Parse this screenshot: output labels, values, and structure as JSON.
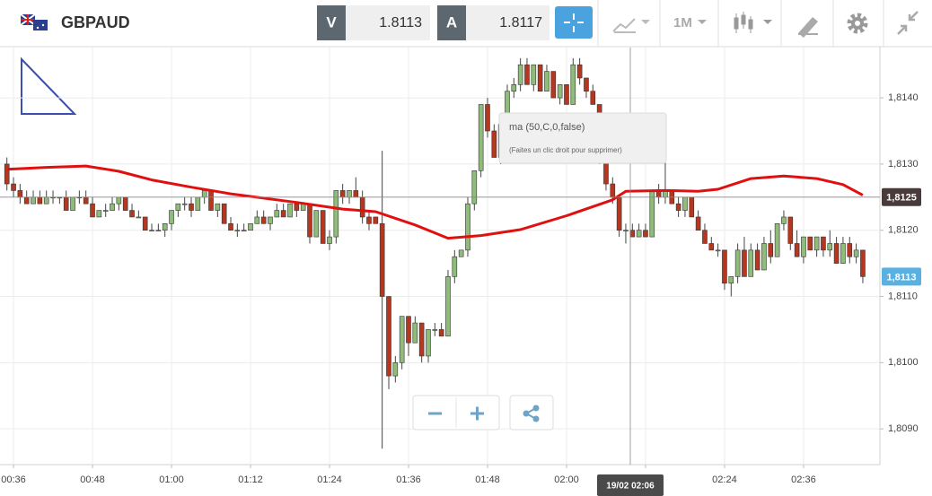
{
  "toolbar": {
    "symbol": "GBPAUD",
    "bid_label": "V",
    "bid": 1.8113,
    "ask_label": "A",
    "ask": 1.8117,
    "timeframe": "1M"
  },
  "tooltip_hint": "(Faites un clic droit pour supprimer)",
  "crosshair": {
    "price": {
      "value": 1.8125,
      "label": "1,8125"
    },
    "time": "19/02 02:06"
  },
  "last_price": {
    "value": 1.8113,
    "label": "1,8113"
  },
  "chart_data": {
    "type": "candlestick",
    "up_color": "#8fbc7a",
    "down_color": "#b5371f",
    "grid": true,
    "xlim": [
      -1.05,
      132.6
    ],
    "xticks": [
      {
        "value": 1,
        "label": "00:36"
      },
      {
        "value": 13,
        "label": "00:48"
      },
      {
        "value": 25,
        "label": "01:00"
      },
      {
        "value": 37,
        "label": "01:12"
      },
      {
        "value": 49,
        "label": "01:24"
      },
      {
        "value": 61,
        "label": "01:36"
      },
      {
        "value": 73,
        "label": "01:48"
      },
      {
        "value": 85,
        "label": "02:00"
      },
      {
        "value": 97,
        "label": "02:12"
      },
      {
        "value": 109,
        "label": "02:24"
      },
      {
        "value": 121,
        "label": "02:36"
      }
    ],
    "ylim": [
      1.80846,
      1.81476
    ],
    "yticks": [
      {
        "value": 1.809,
        "label": "1,8090"
      },
      {
        "value": 1.81,
        "label": "1,8100"
      },
      {
        "value": 1.811,
        "label": "1,8110"
      },
      {
        "value": 1.812,
        "label": "1,8120"
      },
      {
        "value": 1.813,
        "label": "1,8130"
      },
      {
        "value": 1.814,
        "label": "1,8140"
      }
    ],
    "candles": [
      [
        1.813,
        1.8131,
        1.8126,
        1.8127
      ],
      [
        1.8127,
        1.8128,
        1.8125,
        1.8126
      ],
      [
        1.8126,
        1.8127,
        1.8124,
        1.8125
      ],
      [
        1.8125,
        1.8126,
        1.8124,
        1.8124
      ],
      [
        1.8124,
        1.8126,
        1.8124,
        1.8125
      ],
      [
        1.8125,
        1.8126,
        1.8124,
        1.8124
      ],
      [
        1.8124,
        1.8126,
        1.8124,
        1.8125
      ],
      [
        1.8125,
        1.8126,
        1.8124,
        1.8125
      ],
      [
        1.8125,
        1.8125,
        1.8124,
        1.8125
      ],
      [
        1.8125,
        1.8126,
        1.8123,
        1.8123
      ],
      [
        1.8123,
        1.8125,
        1.8123,
        1.8125
      ],
      [
        1.8125,
        1.8126,
        1.8124,
        1.8125
      ],
      [
        1.8125,
        1.8126,
        1.8124,
        1.8124
      ],
      [
        1.8124,
        1.8125,
        1.8122,
        1.8122
      ],
      [
        1.8122,
        1.8123,
        1.8122,
        1.8123
      ],
      [
        1.8123,
        1.8124,
        1.8122,
        1.8123
      ],
      [
        1.8123,
        1.8125,
        1.8123,
        1.8124
      ],
      [
        1.8124,
        1.8125,
        1.8123,
        1.8125
      ],
      [
        1.8125,
        1.8125,
        1.8123,
        1.8123
      ],
      [
        1.8123,
        1.8124,
        1.8122,
        1.8122
      ],
      [
        1.8122,
        1.8123,
        1.8122,
        1.8122
      ],
      [
        1.8122,
        1.8122,
        1.812,
        1.812
      ],
      [
        1.812,
        1.8121,
        1.812,
        1.812
      ],
      [
        1.812,
        1.8121,
        1.812,
        1.812
      ],
      [
        1.812,
        1.8121,
        1.8119,
        1.8121
      ],
      [
        1.8121,
        1.8123,
        1.812,
        1.8123
      ],
      [
        1.8123,
        1.8124,
        1.8122,
        1.8124
      ],
      [
        1.8124,
        1.8125,
        1.8123,
        1.8124
      ],
      [
        1.8124,
        1.8125,
        1.8122,
        1.8123
      ],
      [
        1.8123,
        1.8125,
        1.8123,
        1.8125
      ],
      [
        1.8125,
        1.8126,
        1.8124,
        1.8126
      ],
      [
        1.8126,
        1.8126,
        1.8123,
        1.8123
      ],
      [
        1.8123,
        1.8124,
        1.8122,
        1.8124
      ],
      [
        1.8124,
        1.8124,
        1.8121,
        1.8121
      ],
      [
        1.8121,
        1.8122,
        1.812,
        1.812
      ],
      [
        1.812,
        1.8121,
        1.8119,
        1.812
      ],
      [
        1.812,
        1.8121,
        1.812,
        1.812
      ],
      [
        1.812,
        1.8121,
        1.812,
        1.8121
      ],
      [
        1.8121,
        1.8123,
        1.8121,
        1.8122
      ],
      [
        1.8122,
        1.8123,
        1.8121,
        1.8121
      ],
      [
        1.8121,
        1.8122,
        1.812,
        1.8122
      ],
      [
        1.8122,
        1.8124,
        1.8122,
        1.8123
      ],
      [
        1.8123,
        1.8124,
        1.8122,
        1.8122
      ],
      [
        1.8122,
        1.8124,
        1.8122,
        1.8124
      ],
      [
        1.8124,
        1.8124,
        1.8122,
        1.8123
      ],
      [
        1.8123,
        1.8124,
        1.8123,
        1.8124
      ],
      [
        1.8124,
        1.8124,
        1.8118,
        1.8119
      ],
      [
        1.8119,
        1.8123,
        1.8119,
        1.8123
      ],
      [
        1.8123,
        1.8123,
        1.8118,
        1.8118
      ],
      [
        1.8118,
        1.812,
        1.8117,
        1.8119
      ],
      [
        1.8119,
        1.8126,
        1.8118,
        1.8126
      ],
      [
        1.8126,
        1.8127,
        1.8124,
        1.8125
      ],
      [
        1.8125,
        1.8126,
        1.8124,
        1.8126
      ],
      [
        1.8126,
        1.8128,
        1.8125,
        1.8125
      ],
      [
        1.8125,
        1.8126,
        1.8121,
        1.8122
      ],
      [
        1.8122,
        1.8123,
        1.812,
        1.8121
      ],
      [
        1.8122,
        1.8122,
        1.8121,
        1.8121
      ],
      [
        1.8121,
        1.8132,
        1.8087,
        1.811
      ],
      [
        1.811,
        1.811,
        1.8096,
        1.8098
      ],
      [
        1.8098,
        1.8101,
        1.8097,
        1.81
      ],
      [
        1.81,
        1.8107,
        1.8099,
        1.8107
      ],
      [
        1.8107,
        1.8107,
        1.8101,
        1.8103
      ],
      [
        1.8103,
        1.8107,
        1.8103,
        1.8106
      ],
      [
        1.8106,
        1.8106,
        1.81,
        1.8101
      ],
      [
        1.8101,
        1.8105,
        1.81,
        1.8105
      ],
      [
        1.8105,
        1.8106,
        1.8104,
        1.8105
      ],
      [
        1.8105,
        1.8106,
        1.8104,
        1.8104
      ],
      [
        1.8104,
        1.8114,
        1.8104,
        1.8113
      ],
      [
        1.8113,
        1.8117,
        1.8112,
        1.8116
      ],
      [
        1.8116,
        1.8117,
        1.8116,
        1.8117
      ],
      [
        1.8117,
        1.8125,
        1.8116,
        1.8124
      ],
      [
        1.8124,
        1.8129,
        1.8123,
        1.8129
      ],
      [
        1.8129,
        1.8139,
        1.8128,
        1.8139
      ],
      [
        1.8139,
        1.814,
        1.8134,
        1.8135
      ],
      [
        1.8135,
        1.8136,
        1.8131,
        1.8131
      ],
      [
        1.8131,
        1.8136,
        1.813,
        1.8136
      ],
      [
        1.8136,
        1.8142,
        1.8135,
        1.8141
      ],
      [
        1.8141,
        1.8143,
        1.814,
        1.8142
      ],
      [
        1.8142,
        1.8146,
        1.8141,
        1.8145
      ],
      [
        1.8145,
        1.8146,
        1.8142,
        1.8142
      ],
      [
        1.8142,
        1.8145,
        1.8141,
        1.8145
      ],
      [
        1.8145,
        1.8145,
        1.8141,
        1.8141
      ],
      [
        1.8141,
        1.8145,
        1.8141,
        1.8144
      ],
      [
        1.8144,
        1.8144,
        1.814,
        1.814
      ],
      [
        1.814,
        1.8142,
        1.8139,
        1.8142
      ],
      [
        1.8142,
        1.8142,
        1.8139,
        1.8139
      ],
      [
        1.8139,
        1.8146,
        1.8139,
        1.8145
      ],
      [
        1.8145,
        1.8146,
        1.8142,
        1.8143
      ],
      [
        1.8143,
        1.8143,
        1.814,
        1.8141
      ],
      [
        1.8141,
        1.8142,
        1.8139,
        1.8139
      ],
      [
        1.8139,
        1.8139,
        1.813,
        1.8131
      ],
      [
        1.8131,
        1.8131,
        1.8126,
        1.8127
      ],
      [
        1.8127,
        1.8128,
        1.8124,
        1.8125
      ],
      [
        1.8125,
        1.8125,
        1.8119,
        1.812
      ],
      [
        1.812,
        1.8121,
        1.8118,
        1.812
      ],
      [
        1.812,
        1.8121,
        1.8119,
        1.8119
      ],
      [
        1.8119,
        1.8121,
        1.8119,
        1.812
      ],
      [
        1.812,
        1.8121,
        1.8119,
        1.8119
      ],
      [
        1.8119,
        1.8126,
        1.8119,
        1.8126
      ],
      [
        1.8126,
        1.8127,
        1.8124,
        1.8125
      ],
      [
        1.8125,
        1.8131,
        1.8124,
        1.8126
      ],
      [
        1.8126,
        1.8126,
        1.8124,
        1.8124
      ],
      [
        1.8124,
        1.8125,
        1.8122,
        1.8123
      ],
      [
        1.8123,
        1.8125,
        1.8122,
        1.8125
      ],
      [
        1.8125,
        1.8125,
        1.8122,
        1.8122
      ],
      [
        1.8122,
        1.8123,
        1.812,
        1.812
      ],
      [
        1.812,
        1.8121,
        1.8118,
        1.8118
      ],
      [
        1.8118,
        1.8119,
        1.8117,
        1.8117
      ],
      [
        1.8117,
        1.8118,
        1.8116,
        1.8117
      ],
      [
        1.8117,
        1.8117,
        1.8111,
        1.8112
      ],
      [
        1.8112,
        1.8113,
        1.811,
        1.8113
      ],
      [
        1.8113,
        1.8118,
        1.8112,
        1.8117
      ],
      [
        1.8117,
        1.8119,
        1.8113,
        1.8113
      ],
      [
        1.8113,
        1.8118,
        1.8113,
        1.8117
      ],
      [
        1.8117,
        1.8118,
        1.8114,
        1.8114
      ],
      [
        1.8114,
        1.8119,
        1.8114,
        1.8118
      ],
      [
        1.8118,
        1.812,
        1.8115,
        1.8116
      ],
      [
        1.8116,
        1.8121,
        1.8116,
        1.8121
      ],
      [
        1.8121,
        1.8123,
        1.812,
        1.8122
      ],
      [
        1.8122,
        1.8122,
        1.8117,
        1.8118
      ],
      [
        1.8118,
        1.812,
        1.8116,
        1.8116
      ],
      [
        1.8116,
        1.8119,
        1.8115,
        1.8119
      ],
      [
        1.8119,
        1.8119,
        1.8117,
        1.8117
      ],
      [
        1.8117,
        1.8119,
        1.8116,
        1.8119
      ],
      [
        1.8119,
        1.8119,
        1.8116,
        1.8117
      ],
      [
        1.8117,
        1.812,
        1.8116,
        1.8118
      ],
      [
        1.8118,
        1.8119,
        1.8115,
        1.8115
      ],
      [
        1.8115,
        1.8119,
        1.8115,
        1.8118
      ],
      [
        1.8118,
        1.8119,
        1.8115,
        1.8116
      ],
      [
        1.8116,
        1.8118,
        1.8115,
        1.8117
      ],
      [
        1.8117,
        1.8117,
        1.8112,
        1.8113
      ]
    ],
    "series": [
      {
        "name": "ma (50,C,0,false)",
        "color": "#e01010",
        "x": [
          0,
          6,
          12,
          17,
          22,
          28,
          34,
          44,
          51,
          56,
          62,
          67,
          72,
          78,
          85,
          92,
          94,
          100,
          105,
          108,
          113,
          118,
          123,
          127,
          130
        ],
        "values": [
          1.81292,
          1.81295,
          1.81297,
          1.81289,
          1.81276,
          1.81265,
          1.81255,
          1.81242,
          1.81232,
          1.81228,
          1.81208,
          1.81188,
          1.81192,
          1.81201,
          1.81222,
          1.81246,
          1.81259,
          1.8126,
          1.81259,
          1.81262,
          1.81278,
          1.81282,
          1.81278,
          1.81269,
          1.81253
        ]
      }
    ]
  }
}
